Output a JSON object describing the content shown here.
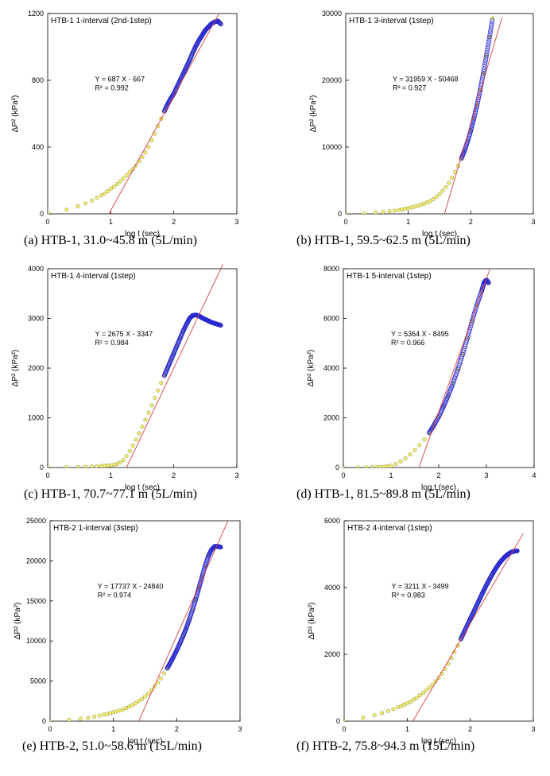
{
  "chart_data": [
    {
      "type": "scatter",
      "title": "HTB-1  1-interval  (2nd-1step)",
      "xlabel": "log t   (sec)",
      "ylabel": "ΔP² (kPa²)",
      "xlim": [
        0,
        3
      ],
      "ylim": [
        0,
        1200
      ],
      "xticks": [
        "0",
        "1",
        "2",
        "3"
      ],
      "yticks": [
        "0",
        "400",
        "800",
        "1200"
      ],
      "grid": false,
      "equation": "Y = 687 X - 667",
      "r2": "R² = 0.992",
      "fit": {
        "slope": 687,
        "intercept": -667,
        "x": [
          0.97,
          2.72
        ]
      },
      "series": [
        {
          "x": [
            0,
            0.3,
            0.48,
            0.6,
            0.7,
            0.78,
            0.85,
            0.9,
            0.95,
            1.0,
            1.05,
            1.1,
            1.15,
            1.2,
            1.25,
            1.3,
            1.35,
            1.4,
            1.45,
            1.5,
            1.55,
            1.6,
            1.65,
            1.7,
            1.75,
            1.8,
            1.85,
            1.9,
            1.95,
            2.0,
            2.05,
            2.1,
            2.15,
            2.2,
            2.25,
            2.3,
            2.35,
            2.4,
            2.45,
            2.5,
            2.55,
            2.6,
            2.65,
            2.7,
            2.75
          ],
          "y": [
            5,
            25,
            45,
            62,
            80,
            97,
            110,
            122,
            135,
            150,
            162,
            178,
            195,
            212,
            230,
            250,
            268,
            290,
            315,
            340,
            368,
            400,
            440,
            480,
            525,
            570,
            615,
            655,
            690,
            720,
            760,
            800,
            840,
            880,
            920,
            965,
            1005,
            1040,
            1070,
            1100,
            1120,
            1140,
            1150,
            1155,
            1135
          ]
        }
      ],
      "caption": "(a) HTB-1, 31.0~45.8 m (5L/min)"
    },
    {
      "type": "scatter",
      "title": "HTB-1  3-interval  (1step)",
      "xlabel": "log t   (sec)",
      "ylabel": "ΔP² (kPa²)",
      "xlim": [
        0,
        3
      ],
      "ylim": [
        0,
        30000
      ],
      "xticks": [
        "0",
        "1",
        "2",
        "3"
      ],
      "yticks": [
        "0",
        "10000",
        "20000",
        "30000"
      ],
      "grid": false,
      "equation": "Y = 31959 X - 50468",
      "r2": "R² = 0.927",
      "fit": {
        "slope": 31959,
        "intercept": -50468,
        "x": [
          1.58,
          2.5
        ]
      },
      "series": [
        {
          "x": [
            0,
            0.3,
            0.48,
            0.6,
            0.7,
            0.78,
            0.85,
            0.9,
            0.95,
            1.0,
            1.05,
            1.1,
            1.15,
            1.2,
            1.25,
            1.3,
            1.35,
            1.4,
            1.45,
            1.5,
            1.55,
            1.6,
            1.65,
            1.7,
            1.75,
            1.8,
            1.85,
            1.9,
            1.95,
            2.0,
            2.05,
            2.1,
            2.15,
            2.2,
            2.25,
            2.3,
            2.35
          ],
          "y": [
            0,
            80,
            180,
            280,
            380,
            480,
            580,
            660,
            750,
            850,
            960,
            1080,
            1200,
            1350,
            1520,
            1700,
            1920,
            2200,
            2550,
            2950,
            3450,
            4000,
            4650,
            5400,
            6250,
            7200,
            8300,
            9500,
            10900,
            12500,
            14300,
            16300,
            18500,
            21000,
            23700,
            26500,
            29300
          ]
        }
      ],
      "caption": "(b) HTB-1, 59.5~62.5 m (5L/min)"
    },
    {
      "type": "scatter",
      "title": "HTB-1  4-interval  (1step)",
      "xlabel": "log t   (sec)",
      "ylabel": "ΔP² (kPa²)",
      "xlim": [
        0,
        3
      ],
      "ylim": [
        0,
        4000
      ],
      "xticks": [
        "0",
        "1",
        "2",
        "3"
      ],
      "yticks": [
        "0",
        "1000",
        "2000",
        "3000",
        "4000"
      ],
      "grid": false,
      "equation": "Y = 2675 X - 3347",
      "r2": "R² = 0.984",
      "fit": {
        "slope": 2675,
        "intercept": -3347,
        "x": [
          1.25,
          2.78
        ]
      },
      "series": [
        {
          "x": [
            0,
            0.3,
            0.48,
            0.6,
            0.7,
            0.78,
            0.85,
            0.9,
            0.95,
            1.0,
            1.05,
            1.1,
            1.15,
            1.2,
            1.25,
            1.3,
            1.35,
            1.4,
            1.45,
            1.5,
            1.55,
            1.6,
            1.65,
            1.7,
            1.75,
            1.8,
            1.85,
            1.9,
            1.95,
            2.0,
            2.05,
            2.1,
            2.15,
            2.2,
            2.25,
            2.3,
            2.35,
            2.4,
            2.45,
            2.5,
            2.55,
            2.6,
            2.65,
            2.7,
            2.75
          ],
          "y": [
            0,
            5,
            10,
            15,
            20,
            25,
            30,
            35,
            40,
            45,
            55,
            70,
            100,
            150,
            230,
            330,
            440,
            560,
            690,
            820,
            960,
            1100,
            1250,
            1400,
            1550,
            1700,
            1850,
            2000,
            2150,
            2300,
            2450,
            2600,
            2750,
            2880,
            3000,
            3060,
            3070,
            3050,
            3010,
            2980,
            2950,
            2920,
            2900,
            2880,
            2860
          ]
        }
      ],
      "caption": "(c) HTB-1, 70.7~77.1 m (5L/min)"
    },
    {
      "type": "scatter",
      "title": "HTB-1  5-interval  (1step)",
      "xlabel": "log t   (sec)",
      "ylabel": "ΔP² (kPa²)",
      "xlim": [
        0,
        4
      ],
      "ylim": [
        0,
        8000
      ],
      "xticks": [
        "0",
        "1",
        "2",
        "3",
        "4"
      ],
      "yticks": [
        "0",
        "2000",
        "4000",
        "6000",
        "8000"
      ],
      "grid": false,
      "equation": "Y = 5364 X - 8495",
      "r2": "R² = 0.966",
      "fit": {
        "slope": 5364,
        "intercept": -8495,
        "x": [
          1.58,
          3.07
        ]
      },
      "series": [
        {
          "x": [
            0,
            0.3,
            0.48,
            0.6,
            0.7,
            0.78,
            0.85,
            0.9,
            0.95,
            1.0,
            1.1,
            1.2,
            1.3,
            1.4,
            1.5,
            1.6,
            1.7,
            1.8,
            1.9,
            2.0,
            2.1,
            2.2,
            2.3,
            2.4,
            2.5,
            2.6,
            2.7,
            2.8,
            2.9,
            2.95,
            3.0,
            3.05
          ],
          "y": [
            0,
            5,
            10,
            15,
            20,
            25,
            30,
            40,
            50,
            70,
            140,
            240,
            370,
            520,
            700,
            900,
            1130,
            1400,
            1700,
            2050,
            2450,
            2900,
            3400,
            3950,
            4550,
            5200,
            5900,
            6550,
            7100,
            7450,
            7550,
            7420
          ]
        }
      ],
      "caption": "(d) HTB-1, 81.5~89.8 m (5L/min)"
    },
    {
      "type": "scatter",
      "title": "HTB-2  1-interval  (3step)",
      "xlabel": "log t   (sec)",
      "ylabel": "ΔP² (kPa²)",
      "xlim": [
        0,
        3
      ],
      "ylim": [
        0,
        25000
      ],
      "xticks": [
        "0",
        "1",
        "2",
        "3"
      ],
      "yticks": [
        "0",
        "5000",
        "10000",
        "15000",
        "20000",
        "25000"
      ],
      "grid": false,
      "equation": "Y = 17737 X - 24840",
      "r2": "R² = 0.974",
      "fit": {
        "slope": 17737,
        "intercept": -24840,
        "x": [
          1.4,
          2.81
        ]
      },
      "series": [
        {
          "x": [
            0,
            0.3,
            0.48,
            0.6,
            0.7,
            0.78,
            0.85,
            0.9,
            0.95,
            1.0,
            1.05,
            1.1,
            1.15,
            1.2,
            1.25,
            1.3,
            1.35,
            1.4,
            1.45,
            1.5,
            1.55,
            1.6,
            1.65,
            1.7,
            1.75,
            1.8,
            1.85,
            1.9,
            1.95,
            2.0,
            2.05,
            2.1,
            2.15,
            2.2,
            2.25,
            2.3,
            2.35,
            2.4,
            2.45,
            2.5,
            2.55,
            2.6,
            2.65,
            2.7
          ],
          "y": [
            0,
            150,
            300,
            420,
            550,
            680,
            800,
            900,
            1000,
            1100,
            1200,
            1320,
            1460,
            1620,
            1800,
            2000,
            2230,
            2480,
            2760,
            3080,
            3440,
            3850,
            4300,
            4800,
            5350,
            5950,
            6600,
            7300,
            8050,
            8850,
            9700,
            10600,
            11600,
            12700,
            13900,
            15200,
            16600,
            18000,
            19400,
            20600,
            21400,
            21800,
            21800,
            21700
          ]
        }
      ],
      "caption": "(e) HTB-2, 51.0~58.6 m (15L/min)"
    },
    {
      "type": "scatter",
      "title": "HTB-2  4-interval  (1step)",
      "xlabel": "log t   (sec)",
      "ylabel": "ΔP² (kPa²)",
      "xlim": [
        0,
        3
      ],
      "ylim": [
        0,
        6000
      ],
      "xticks": [
        "0",
        "1",
        "2",
        "3"
      ],
      "yticks": [
        "0",
        "2000",
        "4000",
        "6000"
      ],
      "grid": false,
      "equation": "Y = 3211 X - 3499",
      "r2": "R² = 0.983",
      "fit": {
        "slope": 3211,
        "intercept": -3499,
        "x": [
          1.09,
          2.84
        ]
      },
      "series": [
        {
          "x": [
            0,
            0.3,
            0.48,
            0.6,
            0.7,
            0.78,
            0.85,
            0.9,
            0.95,
            1.0,
            1.05,
            1.1,
            1.15,
            1.2,
            1.25,
            1.3,
            1.35,
            1.4,
            1.45,
            1.5,
            1.55,
            1.6,
            1.65,
            1.7,
            1.75,
            1.8,
            1.85,
            1.9,
            1.95,
            2.0,
            2.05,
            2.1,
            2.15,
            2.2,
            2.25,
            2.3,
            2.35,
            2.4,
            2.45,
            2.5,
            2.55,
            2.6,
            2.65,
            2.7,
            2.75
          ],
          "y": [
            0,
            100,
            180,
            240,
            300,
            360,
            410,
            450,
            490,
            530,
            580,
            640,
            700,
            770,
            840,
            920,
            1000,
            1090,
            1190,
            1300,
            1420,
            1560,
            1720,
            1890,
            2070,
            2260,
            2460,
            2660,
            2860,
            3060,
            3260,
            3460,
            3660,
            3860,
            4050,
            4230,
            4400,
            4560,
            4700,
            4820,
            4920,
            5000,
            5060,
            5090,
            5100
          ]
        }
      ],
      "caption": "(f) HTB-2, 75.8~94.3 m (15L/min)"
    }
  ]
}
